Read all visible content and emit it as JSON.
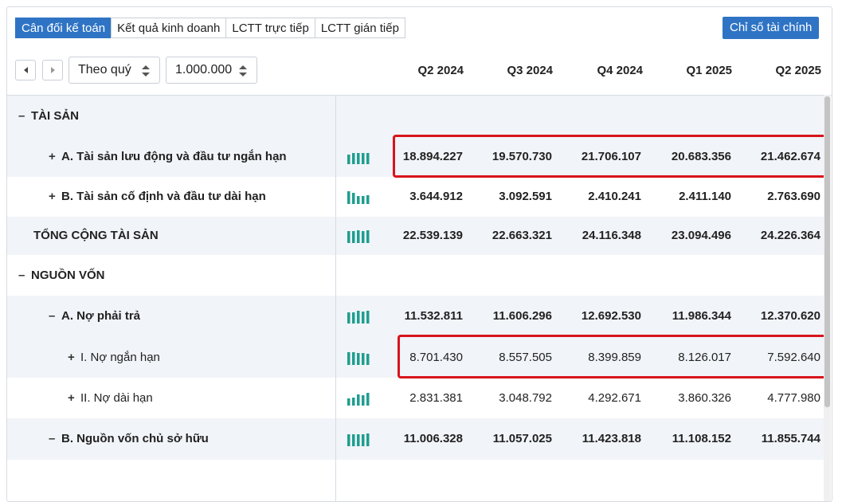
{
  "tabs": [
    {
      "label": "Cân đối kế toán",
      "active": true
    },
    {
      "label": "Kết quả kinh doanh",
      "active": false
    },
    {
      "label": "LCTT trực tiếp",
      "active": false
    },
    {
      "label": "LCTT gián tiếp",
      "active": false
    }
  ],
  "ratio_button": "Chỉ số tài chính",
  "controls": {
    "period_select": "Theo quý",
    "unit_select": "1.000.000"
  },
  "columns": [
    "Q2 2024",
    "Q3 2024",
    "Q4 2024",
    "Q1 2025",
    "Q2 2025"
  ],
  "colors": {
    "accent": "#2f74c4",
    "highlight": "#d8141c",
    "spark": "#1f9e8f"
  },
  "rows": [
    {
      "sign": "–",
      "label": "TÀI SẢN",
      "bold": true,
      "values": []
    },
    {
      "sign": "+",
      "label": "A. Tài sản lưu động và đầu tư ngắn hạn",
      "bold": true,
      "values": [
        "18.894.227",
        "19.570.730",
        "21.706.107",
        "20.683.356",
        "21.462.674"
      ]
    },
    {
      "sign": "+",
      "label": "B. Tài sản cố định và đầu tư dài hạn",
      "bold": true,
      "values": [
        "3.644.912",
        "3.092.591",
        "2.410.241",
        "2.411.140",
        "2.763.690"
      ]
    },
    {
      "sign": "",
      "label": "TỔNG CỘNG TÀI SẢN",
      "bold": true,
      "values": [
        "22.539.139",
        "22.663.321",
        "24.116.348",
        "23.094.496",
        "24.226.364"
      ]
    },
    {
      "sign": "–",
      "label": "NGUỒN VỐN",
      "bold": true,
      "values": []
    },
    {
      "sign": "–",
      "label": "A. Nợ phải trả",
      "bold": true,
      "values": [
        "11.532.811",
        "11.606.296",
        "12.692.530",
        "11.986.344",
        "12.370.620"
      ]
    },
    {
      "sign": "+",
      "label": "I. Nợ ngắn hạn",
      "bold": false,
      "values": [
        "8.701.430",
        "8.557.505",
        "8.399.859",
        "8.126.017",
        "7.592.640"
      ]
    },
    {
      "sign": "+",
      "label": "II. Nợ dài hạn",
      "bold": false,
      "values": [
        "2.831.381",
        "3.048.792",
        "4.292.671",
        "3.860.326",
        "4.777.980"
      ]
    },
    {
      "sign": "–",
      "label": "B. Nguồn vốn chủ sở hữu",
      "bold": true,
      "values": [
        "11.006.328",
        "11.057.025",
        "11.423.818",
        "11.108.152",
        "11.855.744"
      ]
    }
  ]
}
